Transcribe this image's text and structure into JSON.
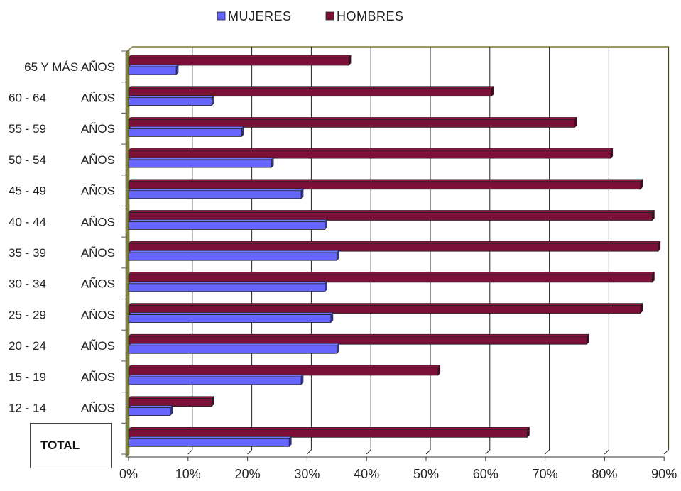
{
  "chart_data": {
    "type": "bar",
    "orientation": "horizontal",
    "legend": [
      "MUJERES",
      "HOMBRES"
    ],
    "legend_position": "top",
    "categories": [
      "65 Y MÁS AÑOS",
      "60 - 64 AÑOS",
      "55 - 59 AÑOS",
      "50 - 54 AÑOS",
      "45 - 49 AÑOS",
      "40 - 44 AÑOS",
      "35 - 39 AÑOS",
      "30 - 34 AÑOS",
      "25 - 29 AÑOS",
      "20 - 24 AÑOS",
      "15 - 19 AÑOS",
      "12 - 14 AÑOS",
      "TOTAL"
    ],
    "category_labels": [
      [
        "65 Y MÁS AÑOS",
        ""
      ],
      [
        "60 - 64",
        "AÑOS"
      ],
      [
        "55 - 59",
        "AÑOS"
      ],
      [
        "50 - 54",
        "AÑOS"
      ],
      [
        "45 - 49",
        "AÑOS"
      ],
      [
        "40 - 44",
        "AÑOS"
      ],
      [
        "35 - 39",
        "AÑOS"
      ],
      [
        "30 - 34",
        "AÑOS"
      ],
      [
        "25 - 29",
        "AÑOS"
      ],
      [
        "20 - 24",
        "AÑOS"
      ],
      [
        "15 - 19",
        "AÑOS"
      ],
      [
        "12 - 14",
        "AÑOS"
      ],
      [
        "",
        ""
      ]
    ],
    "total_label": "TOTAL",
    "series": [
      {
        "name": "MUJERES",
        "color": "#6666ff",
        "values": [
          8,
          14,
          19,
          24,
          29,
          33,
          35,
          33,
          34,
          35,
          29,
          7,
          27
        ]
      },
      {
        "name": "HOMBRES",
        "color": "#7a1038",
        "values": [
          37,
          61,
          75,
          81,
          86,
          88,
          89,
          88,
          86,
          77,
          52,
          14,
          67
        ]
      }
    ],
    "xlim": [
      0,
      90
    ],
    "xticks": [
      0,
      10,
      20,
      30,
      40,
      50,
      60,
      70,
      80,
      90
    ],
    "xtick_labels": [
      "0%",
      "10%",
      "20%",
      "30%",
      "40%",
      "50%",
      "60%",
      "70%",
      "80%",
      "90%"
    ],
    "grid": true,
    "title": "",
    "xlabel": "",
    "ylabel": "",
    "plot_background": "#ffffff",
    "plot_border_color": "#999966",
    "wall_color": "#808040"
  }
}
